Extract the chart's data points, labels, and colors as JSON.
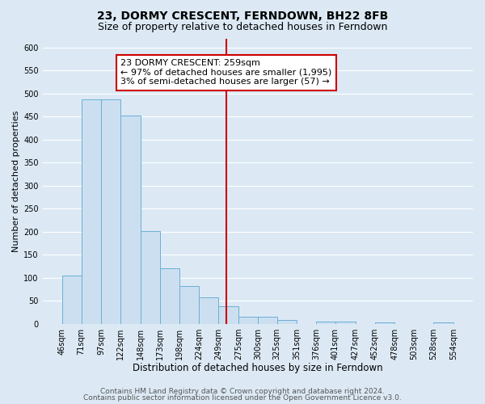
{
  "title": "23, DORMY CRESCENT, FERNDOWN, BH22 8FB",
  "subtitle": "Size of property relative to detached houses in Ferndown",
  "xlabel": "Distribution of detached houses by size in Ferndown",
  "ylabel": "Number of detached properties",
  "bar_edges": [
    46,
    71,
    97,
    122,
    148,
    173,
    198,
    224,
    249,
    275,
    300,
    325,
    351,
    376,
    401,
    427,
    452,
    478,
    503,
    528,
    554
  ],
  "bar_heights": [
    105,
    488,
    488,
    452,
    202,
    121,
    83,
    57,
    38,
    15,
    15,
    9,
    0,
    5,
    5,
    0,
    3,
    0,
    0,
    4
  ],
  "bar_color": "#ccdff0",
  "bar_edge_color": "#6aafd6",
  "property_value": 259,
  "vline_color": "#cc0000",
  "ylim": [
    0,
    620
  ],
  "yticks": [
    0,
    50,
    100,
    150,
    200,
    250,
    300,
    350,
    400,
    450,
    500,
    550,
    600
  ],
  "annotation_title": "23 DORMY CRESCENT: 259sqm",
  "annotation_line1": "← 97% of detached houses are smaller (1,995)",
  "annotation_line2": "3% of semi-detached houses are larger (57) →",
  "annotation_box_color": "#ffffff",
  "annotation_box_edge": "#cc0000",
  "footer1": "Contains HM Land Registry data © Crown copyright and database right 2024.",
  "footer2": "Contains public sector information licensed under the Open Government Licence v3.0.",
  "bg_color": "#dce9f5",
  "plot_bg_color": "#dce9f5",
  "grid_color": "#ffffff",
  "title_fontsize": 10,
  "subtitle_fontsize": 9,
  "xlabel_fontsize": 8.5,
  "ylabel_fontsize": 8,
  "tick_fontsize": 7,
  "annotation_fontsize": 8,
  "footer_fontsize": 6.5
}
